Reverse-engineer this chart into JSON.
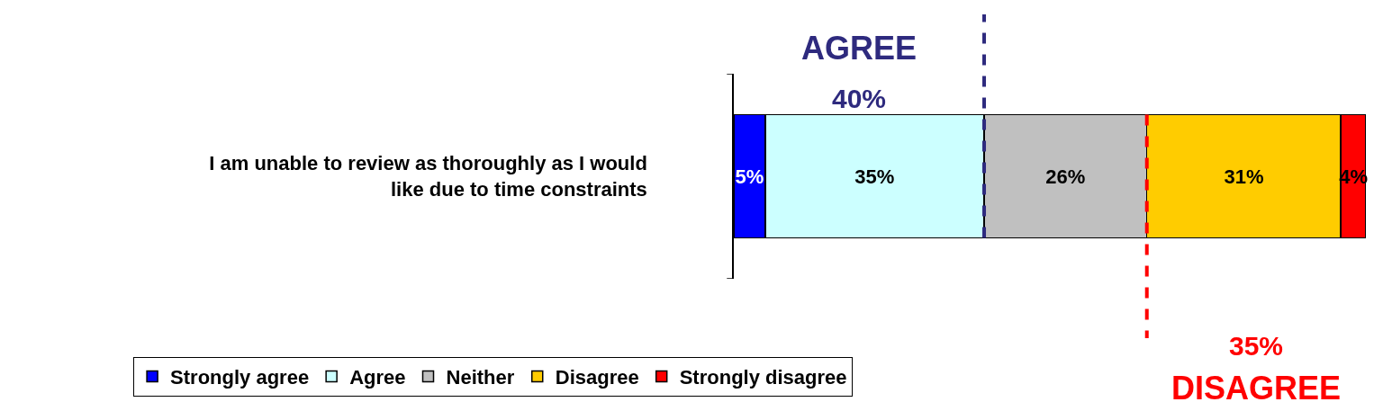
{
  "chart_data": {
    "type": "bar",
    "orientation": "horizontal",
    "stacked": true,
    "categories": [
      "I am unable to review as thoroughly as I would like due to time constraints"
    ],
    "series": [
      {
        "name": "Strongly agree",
        "color": "#0000ff",
        "values": [
          5
        ],
        "value_labels": [
          "5%"
        ]
      },
      {
        "name": "Agree",
        "color": "#ccffff",
        "values": [
          35
        ],
        "value_labels": [
          "35%"
        ]
      },
      {
        "name": "Neither",
        "color": "#c0c0c0",
        "values": [
          26
        ],
        "value_labels": [
          "26%"
        ]
      },
      {
        "name": "Disagree",
        "color": "#ffcc00",
        "values": [
          31
        ],
        "value_labels": [
          "31%"
        ]
      },
      {
        "name": "Strongly disagree",
        "color": "#ff0000",
        "values": [
          4
        ],
        "value_labels": [
          "4%"
        ]
      }
    ],
    "xlim": [
      0,
      101
    ],
    "tick_labels": "y",
    "legend": "bottom",
    "ref_lines": [
      {
        "axis": "x",
        "value": 40,
        "label": "AGREE",
        "color": "#2e2a7e",
        "line_style": "dashed"
      },
      {
        "axis": "x",
        "value": 66,
        "label": "DISAGREE",
        "color": "#ff0000",
        "line_style": "dashed"
      }
    ],
    "annotations": [
      "40%",
      "35%"
    ]
  }
}
